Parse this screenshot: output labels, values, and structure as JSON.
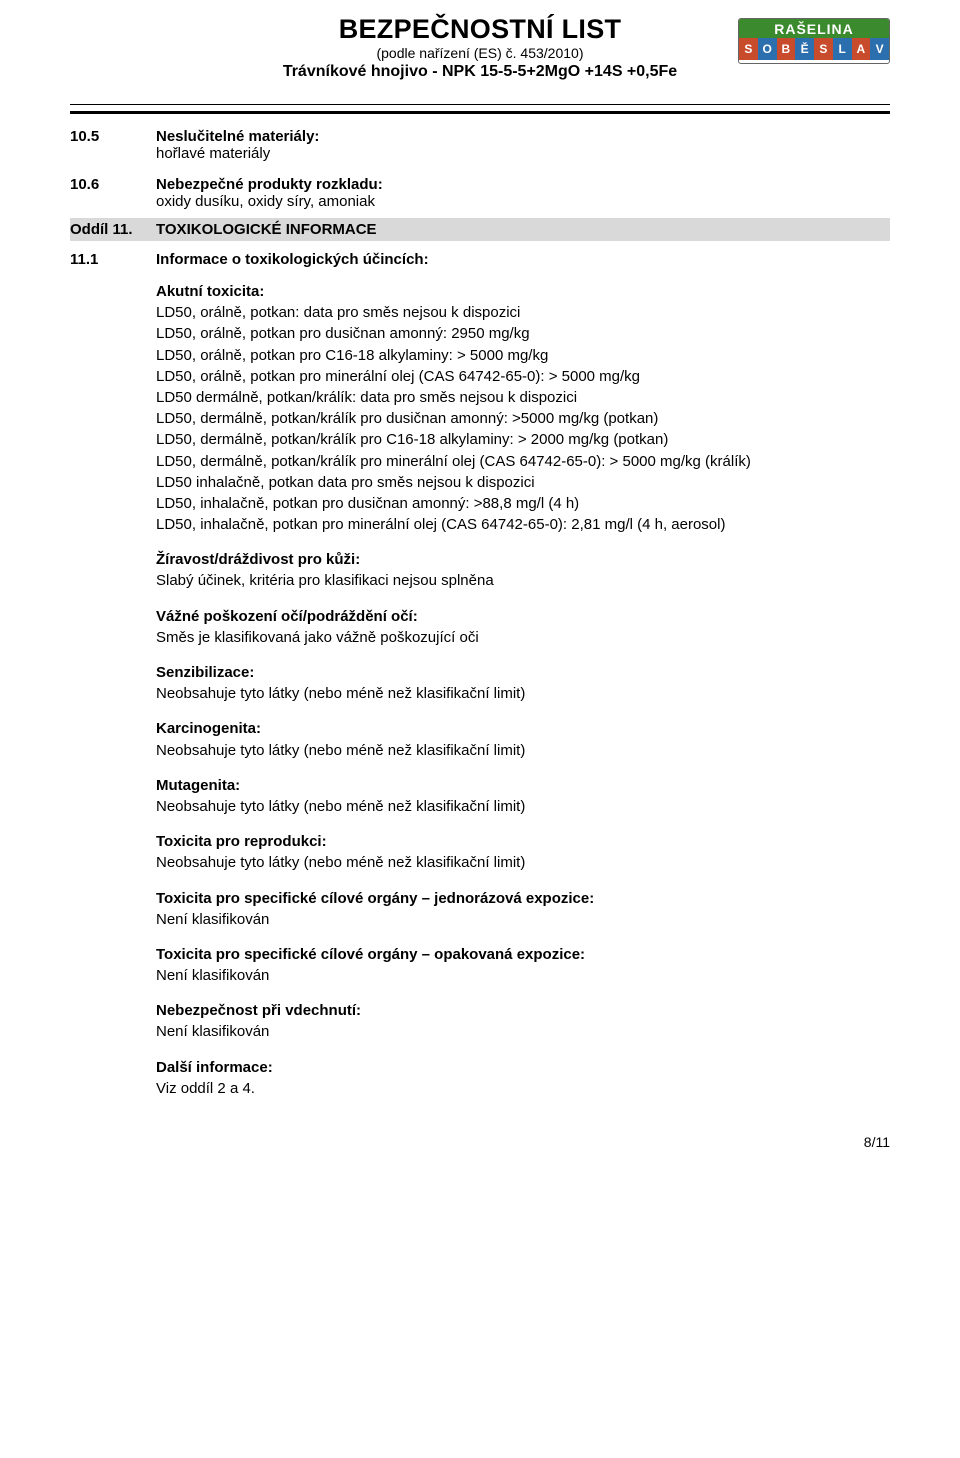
{
  "header": {
    "title": "BEZPEČNOSTNÍ LIST",
    "reg": "(podle nařízení (ES) č. 453/2010)",
    "product": "Trávníkové hnojivo - NPK 15-5-5+2MgO +14S +0,5Fe"
  },
  "logo": {
    "top": "RAŠELINA",
    "letters": [
      "S",
      "O",
      "B",
      "Ě",
      "S",
      "L",
      "A",
      "V"
    ],
    "bgcolors": [
      "#c84b2b",
      "#2c6fae",
      "#c84b2b",
      "#2c6fae",
      "#c84b2b",
      "#2c6fae",
      "#c84b2b",
      "#2c6fae"
    ]
  },
  "s105": {
    "num": "10.5",
    "title": "Neslučitelné materiály:",
    "line": "hořlavé materiály"
  },
  "s106": {
    "num": "10.6",
    "title": "Nebezpečné produkty rozkladu:",
    "line": "oxidy dusíku, oxidy síry, amoniak"
  },
  "oddil11": {
    "num": "Oddíl 11.",
    "title": "TOXIKOLOGICKÉ INFORMACE"
  },
  "s111": {
    "num": "11.1",
    "title": "Informace o toxikologických účincích:"
  },
  "akutni": {
    "heading": "Akutní toxicita:",
    "lines": [
      "LD50, orálně, potkan: data pro směs nejsou k dispozici",
      "LD50, orálně, potkan pro dusičnan amonný: 2950 mg/kg",
      "LD50, orálně, potkan pro C16-18 alkylaminy: > 5000 mg/kg",
      "LD50, orálně, potkan pro minerální olej (CAS 64742-65-0): > 5000 mg/kg",
      "LD50 dermálně, potkan/králík: data pro směs nejsou k dispozici",
      "LD50, dermálně, potkan/králík pro dusičnan amonný: >5000 mg/kg (potkan)",
      "LD50, dermálně, potkan/králík pro C16-18 alkylaminy: > 2000 mg/kg (potkan)",
      "LD50, dermálně, potkan/králík pro minerální olej (CAS 64742-65-0): > 5000 mg/kg (králík)",
      "LD50 inhalačně, potkan data pro směs nejsou k dispozici",
      "LD50, inhalačně, potkan pro dusičnan amonný: >88,8 mg/l (4 h)",
      "LD50, inhalačně, potkan pro minerální olej (CAS 64742-65-0): 2,81 mg/l (4 h, aerosol)"
    ]
  },
  "sections": [
    {
      "h": "Žíravost/dráždivost pro kůži:",
      "b": "Slabý účinek, kritéria pro klasifikaci nejsou splněna"
    },
    {
      "h": "Vážné poškození očí/podráždění očí:",
      "b": "Směs je klasifikovaná jako vážně poškozující oči"
    },
    {
      "h": "Senzibilizace:",
      "b": "Neobsahuje tyto látky (nebo méně než klasifikační limit)"
    },
    {
      "h": "Karcinogenita:",
      "b": "Neobsahuje tyto látky (nebo méně než klasifikační limit)"
    },
    {
      "h": "Mutagenita:",
      "b": "Neobsahuje tyto látky (nebo méně než klasifikační limit)"
    },
    {
      "h": "Toxicita pro reprodukci:",
      "b": "Neobsahuje tyto látky (nebo méně než klasifikační limit)"
    },
    {
      "h": "Toxicita pro specifické cílové orgány – jednorázová expozice:",
      "b": "Není klasifikován"
    },
    {
      "h": "Toxicita pro specifické cílové orgány – opakovaná expozice:",
      "b": "Není klasifikován"
    },
    {
      "h": "Nebezpečnost při vdechnutí:",
      "b": "Není klasifikován"
    },
    {
      "h": "Další informace:",
      "b": "Viz oddíl 2 a 4."
    }
  ],
  "footer": {
    "page": "8/11"
  }
}
